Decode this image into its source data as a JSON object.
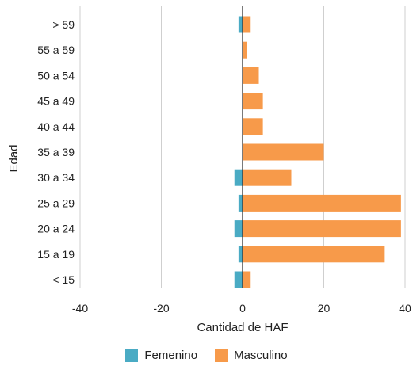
{
  "chart_data": {
    "type": "bar",
    "orientation": "horizontal",
    "stacked": "diverging",
    "categories": [
      "> 59",
      "55 a 59",
      "50 a 54",
      "45 a 49",
      "40 a 44",
      "35 a 39",
      "30 a 34",
      "25 a 29",
      "20 a 24",
      "15 a 19",
      "< 15"
    ],
    "series": [
      {
        "name": "Femenino",
        "color": "#4aabc4",
        "values": [
          -1,
          0,
          0,
          0,
          0,
          0,
          -2,
          -1,
          -2,
          -1,
          -2
        ]
      },
      {
        "name": "Masculino",
        "color": "#f79a4a",
        "values": [
          2,
          1,
          4,
          5,
          5,
          20,
          12,
          39,
          39,
          35,
          2
        ]
      }
    ],
    "xlabel": "Cantidad de HAF",
    "ylabel": "Edad",
    "xlim": [
      -40,
      40
    ],
    "xticks": [
      -40,
      -20,
      0,
      20,
      40
    ],
    "grid": "vertical",
    "legend_position": "bottom"
  }
}
